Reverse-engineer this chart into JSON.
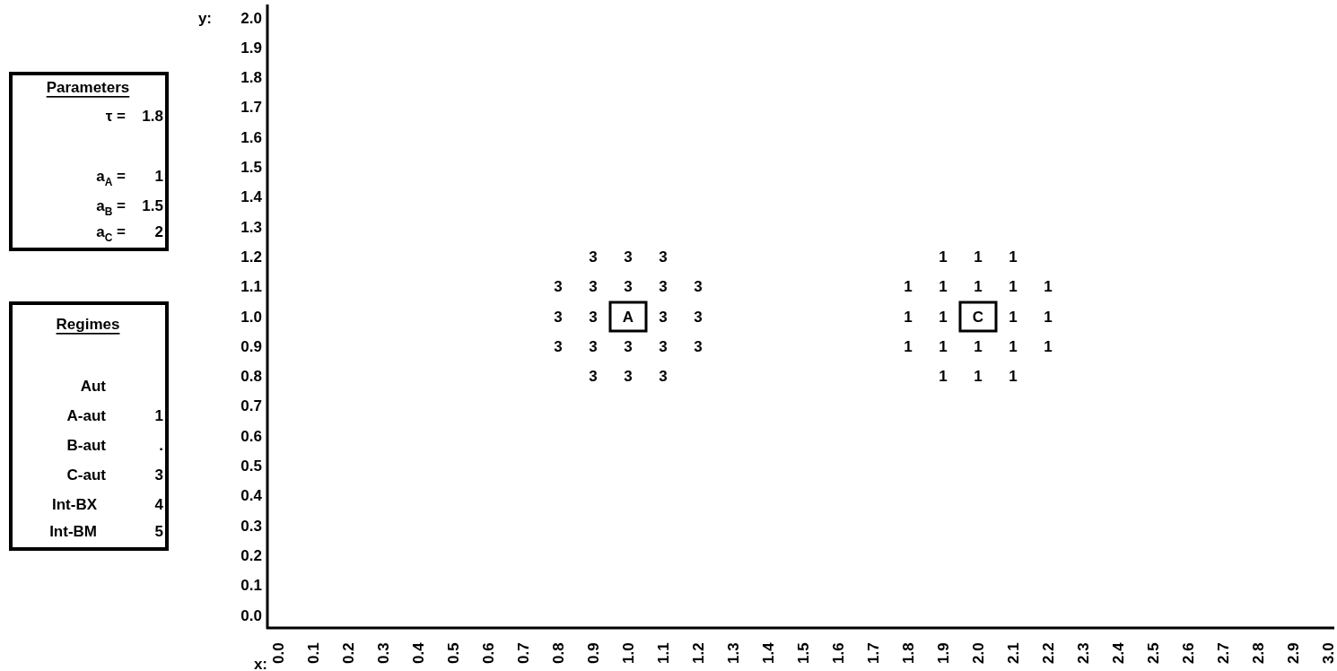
{
  "chart_data": {
    "type": "heatmap",
    "xlabel": "x:",
    "ylabel": "y:",
    "data_labels": true,
    "categories": [
      "0.0",
      "0.1",
      "0.2",
      "0.3",
      "0.4",
      "0.5",
      "0.6",
      "0.7",
      "0.8",
      "0.9",
      "1.0",
      "1.1",
      "1.2",
      "1.3",
      "1.4",
      "1.5",
      "1.6",
      "1.7",
      "1.8",
      "1.9",
      "2.0",
      "2.1",
      "2.2",
      "2.3",
      "2.4",
      "2.5",
      "2.6",
      "2.7",
      "2.8",
      "2.9",
      "3.0"
    ],
    "y_categories": [
      "2.0",
      "1.9",
      "1.8",
      "1.7",
      "1.6",
      "1.5",
      "1.4",
      "1.3",
      "1.2",
      "1.1",
      "1.0",
      "0.9",
      "0.8",
      "0.7",
      "0.6",
      "0.5",
      "0.4",
      "0.3",
      "0.2",
      "0.1",
      "0.0"
    ],
    "cells": [
      [
        null,
        null,
        null,
        null,
        null,
        null,
        null,
        null,
        null,
        null,
        null,
        null,
        null,
        null,
        null,
        null,
        null,
        null,
        null,
        null,
        null,
        null,
        null,
        null,
        null,
        null,
        null,
        null,
        null,
        null,
        null
      ],
      [
        null,
        null,
        null,
        null,
        null,
        null,
        null,
        null,
        null,
        null,
        null,
        null,
        null,
        null,
        null,
        null,
        null,
        null,
        null,
        null,
        null,
        null,
        null,
        null,
        null,
        null,
        null,
        null,
        null,
        null,
        null
      ],
      [
        null,
        null,
        null,
        null,
        null,
        null,
        null,
        null,
        null,
        null,
        null,
        null,
        null,
        null,
        null,
        null,
        null,
        null,
        null,
        null,
        null,
        null,
        null,
        null,
        null,
        null,
        null,
        null,
        null,
        null,
        null
      ],
      [
        null,
        null,
        null,
        null,
        null,
        null,
        null,
        null,
        null,
        null,
        null,
        null,
        null,
        null,
        null,
        null,
        null,
        null,
        null,
        null,
        null,
        null,
        null,
        null,
        null,
        null,
        null,
        null,
        null,
        null,
        null
      ],
      [
        null,
        null,
        null,
        null,
        null,
        null,
        null,
        null,
        null,
        null,
        null,
        null,
        null,
        null,
        null,
        null,
        null,
        null,
        null,
        null,
        null,
        null,
        null,
        null,
        null,
        null,
        null,
        null,
        null,
        null,
        null
      ],
      [
        null,
        null,
        null,
        null,
        null,
        null,
        null,
        null,
        null,
        null,
        null,
        null,
        null,
        null,
        null,
        null,
        null,
        null,
        null,
        null,
        null,
        null,
        null,
        null,
        null,
        null,
        null,
        null,
        null,
        null,
        null
      ],
      [
        null,
        null,
        null,
        null,
        null,
        null,
        null,
        null,
        null,
        null,
        null,
        null,
        null,
        null,
        null,
        null,
        null,
        null,
        null,
        null,
        null,
        null,
        null,
        null,
        null,
        null,
        null,
        null,
        null,
        null,
        null
      ],
      [
        null,
        null,
        null,
        null,
        null,
        null,
        null,
        null,
        null,
        null,
        null,
        null,
        null,
        null,
        null,
        null,
        null,
        null,
        null,
        null,
        null,
        null,
        null,
        null,
        null,
        null,
        null,
        null,
        null,
        null,
        null
      ],
      [
        null,
        null,
        null,
        null,
        null,
        null,
        null,
        null,
        null,
        3,
        3,
        3,
        null,
        null,
        null,
        null,
        null,
        null,
        null,
        1,
        1,
        1,
        null,
        null,
        null,
        null,
        null,
        null,
        null,
        null,
        null
      ],
      [
        null,
        null,
        null,
        null,
        null,
        null,
        null,
        null,
        3,
        3,
        3,
        3,
        3,
        null,
        null,
        null,
        null,
        null,
        1,
        1,
        1,
        1,
        1,
        null,
        null,
        null,
        null,
        null,
        null,
        null,
        null
      ],
      [
        null,
        null,
        null,
        null,
        null,
        null,
        null,
        null,
        3,
        3,
        null,
        3,
        3,
        null,
        null,
        null,
        null,
        null,
        1,
        1,
        null,
        1,
        1,
        null,
        null,
        null,
        null,
        null,
        null,
        null,
        null
      ],
      [
        null,
        null,
        null,
        null,
        null,
        null,
        null,
        null,
        3,
        3,
        3,
        3,
        3,
        null,
        null,
        null,
        null,
        null,
        1,
        1,
        1,
        1,
        1,
        null,
        null,
        null,
        null,
        null,
        null,
        null,
        null
      ],
      [
        null,
        null,
        null,
        null,
        null,
        null,
        null,
        null,
        null,
        3,
        3,
        3,
        null,
        null,
        null,
        null,
        null,
        null,
        null,
        1,
        1,
        1,
        null,
        null,
        null,
        null,
        null,
        null,
        null,
        null,
        null
      ],
      [
        null,
        null,
        null,
        null,
        null,
        null,
        null,
        null,
        null,
        null,
        null,
        null,
        null,
        null,
        null,
        null,
        null,
        null,
        null,
        null,
        null,
        null,
        null,
        null,
        null,
        null,
        null,
        null,
        null,
        null,
        null
      ],
      [
        null,
        null,
        null,
        null,
        null,
        null,
        null,
        null,
        null,
        null,
        null,
        null,
        null,
        null,
        null,
        null,
        null,
        null,
        null,
        null,
        null,
        null,
        null,
        null,
        null,
        null,
        null,
        null,
        null,
        null,
        null
      ],
      [
        null,
        null,
        null,
        null,
        null,
        null,
        null,
        null,
        null,
        null,
        null,
        null,
        null,
        null,
        null,
        null,
        null,
        null,
        null,
        null,
        null,
        null,
        null,
        null,
        null,
        null,
        null,
        null,
        null,
        null,
        null
      ],
      [
        null,
        null,
        null,
        null,
        null,
        null,
        null,
        null,
        null,
        null,
        null,
        null,
        null,
        null,
        null,
        null,
        null,
        null,
        null,
        null,
        null,
        null,
        null,
        null,
        null,
        null,
        null,
        null,
        null,
        null,
        null
      ],
      [
        null,
        null,
        null,
        null,
        null,
        null,
        null,
        null,
        null,
        null,
        null,
        null,
        null,
        null,
        null,
        null,
        null,
        null,
        null,
        null,
        null,
        null,
        null,
        null,
        null,
        null,
        null,
        null,
        null,
        null,
        null
      ],
      [
        null,
        null,
        null,
        null,
        null,
        null,
        null,
        null,
        null,
        null,
        null,
        null,
        null,
        null,
        null,
        null,
        null,
        null,
        null,
        null,
        null,
        null,
        null,
        null,
        null,
        null,
        null,
        null,
        null,
        null,
        null
      ],
      [
        null,
        null,
        null,
        null,
        null,
        null,
        null,
        null,
        null,
        null,
        null,
        null,
        null,
        null,
        null,
        null,
        null,
        null,
        null,
        null,
        null,
        null,
        null,
        null,
        null,
        null,
        null,
        null,
        null,
        null,
        null
      ],
      [
        null,
        null,
        null,
        null,
        null,
        null,
        null,
        null,
        null,
        null,
        null,
        null,
        null,
        null,
        null,
        null,
        null,
        null,
        null,
        null,
        null,
        null,
        null,
        null,
        null,
        null,
        null,
        null,
        null,
        null,
        null
      ]
    ],
    "annotations": [
      {
        "text": "A",
        "x": "1.0",
        "y": "1.0"
      },
      {
        "text": "C",
        "x": "2.0",
        "y": "1.0"
      },
      "Parameters",
      "τ =",
      "1.8",
      "a$_{A}$ =",
      "1",
      "a$_{B}$ =",
      "1.5",
      "a$_{C}$ =",
      "2",
      "Regimes",
      "Aut",
      "A-aut",
      "1",
      "B-aut",
      ".",
      "C-aut",
      "3",
      "Int-BX",
      "4",
      "Int-BM",
      "5"
    ]
  }
}
